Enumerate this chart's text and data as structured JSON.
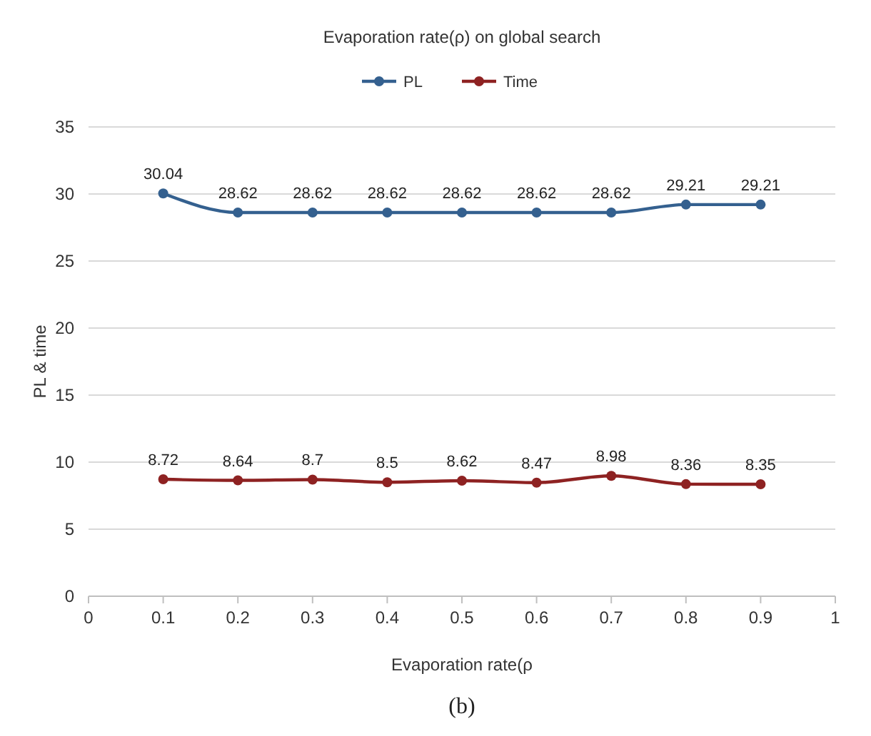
{
  "chart_data": {
    "type": "line",
    "title": "Evaporation rate(ρ) on global search",
    "xlabel": "Evaporation rate(ρ",
    "ylabel": "PL & time",
    "x": [
      0.1,
      0.2,
      0.3,
      0.4,
      0.5,
      0.6,
      0.7,
      0.8,
      0.9
    ],
    "series": [
      {
        "name": "PL",
        "color": "#34608f",
        "values": [
          30.04,
          28.62,
          28.62,
          28.62,
          28.62,
          28.62,
          28.62,
          29.21,
          29.21
        ]
      },
      {
        "name": "Time",
        "color": "#8e2222",
        "values": [
          8.72,
          8.64,
          8.7,
          8.5,
          8.62,
          8.47,
          8.98,
          8.36,
          8.35
        ]
      }
    ],
    "xlim": [
      0,
      1
    ],
    "xticks": [
      0,
      0.1,
      0.2,
      0.3,
      0.4,
      0.5,
      0.6,
      0.7,
      0.8,
      0.9,
      1
    ],
    "ylim": [
      0,
      35
    ],
    "yticks": [
      0,
      5,
      10,
      15,
      20,
      25,
      30,
      35
    ],
    "grid": "y",
    "legend": "top",
    "marker": "circle",
    "line_style": "solid",
    "data_labels": true,
    "annotations": [
      "(b)"
    ]
  }
}
